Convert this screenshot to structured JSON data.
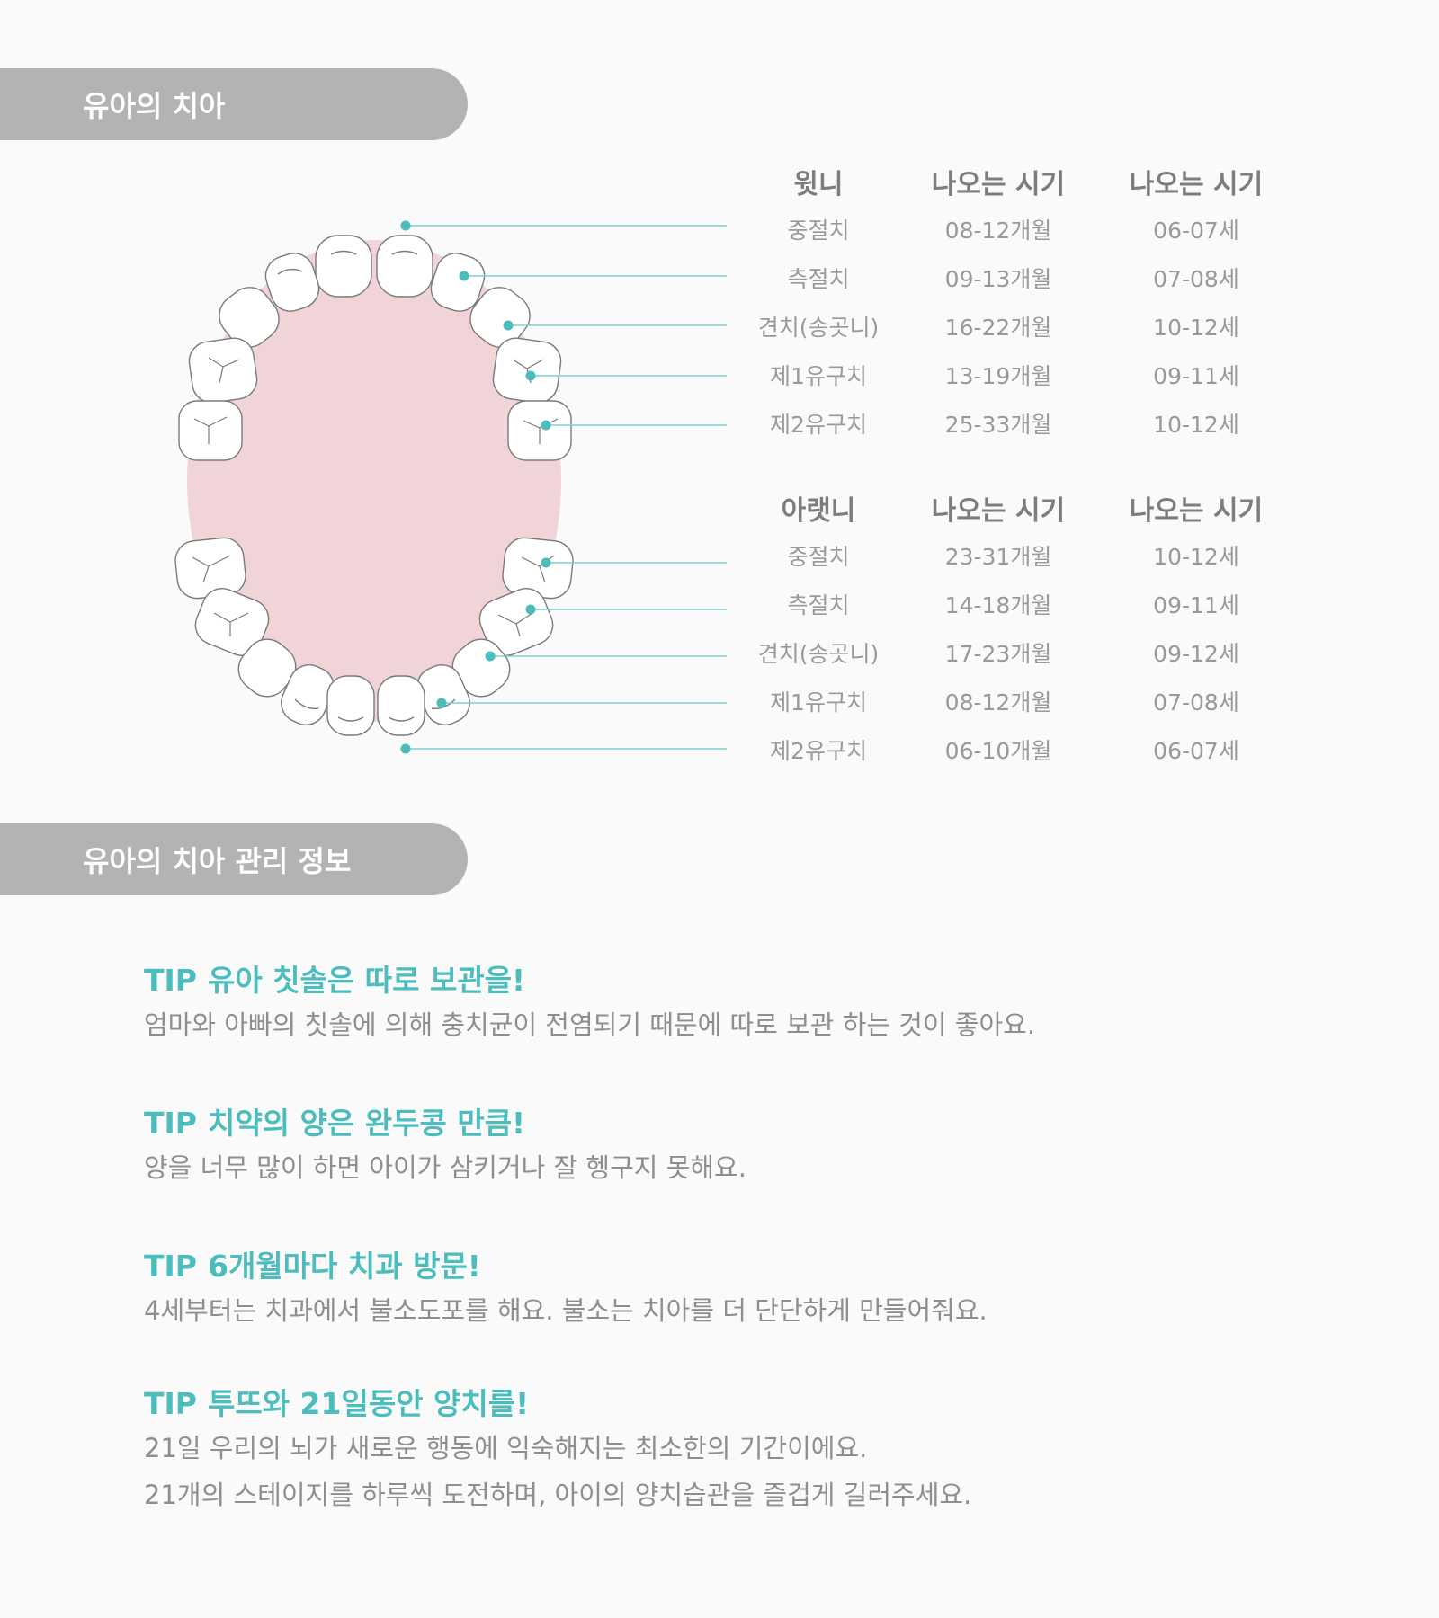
{
  "section1": {
    "title": "유아의 치아"
  },
  "section2": {
    "title": "유아의 치아 관리 정보"
  },
  "upper_table": {
    "headers": [
      "윗니",
      "나오는 시기",
      "나오는 시기"
    ],
    "rows": [
      [
        "중절치",
        "08-12개월",
        "06-07세"
      ],
      [
        "측절치",
        "09-13개월",
        "07-08세"
      ],
      [
        "견치(송곳니)",
        "16-22개월",
        "10-12세"
      ],
      [
        "제1유구치",
        "13-19개월",
        "09-11세"
      ],
      [
        "제2유구치",
        "25-33개월",
        "10-12세"
      ]
    ]
  },
  "lower_table": {
    "headers": [
      "아랫니",
      "나오는 시기",
      "나오는 시기"
    ],
    "rows": [
      [
        "중절치",
        "23-31개월",
        "10-12세"
      ],
      [
        "측절치",
        "14-18개월",
        "09-11세"
      ],
      [
        "견치(송곳니)",
        "17-23개월",
        "09-12세"
      ],
      [
        "제1유구치",
        "08-12개월",
        "07-08세"
      ],
      [
        "제2유구치",
        "06-10개월",
        "06-07세"
      ]
    ]
  },
  "tips": [
    {
      "label": "TIP",
      "title": "유아 칫솔은 따로 보관을!",
      "lines": [
        "엄마와 아빠의 칫솔에 의해 충치균이 전염되기 때문에 따로 보관 하는 것이 좋아요."
      ]
    },
    {
      "label": "TIP",
      "title": "치약의 양은 완두콩 만큼!",
      "lines": [
        "양을 너무 많이 하면 아이가 삼키거나 잘 헹구지 못해요."
      ]
    },
    {
      "label": "TIP",
      "title": "6개월마다 치과 방문!",
      "lines": [
        "4세부터는 치과에서 불소도포를 해요. 불소는 치아를 더 단단하게 만들어줘요."
      ]
    },
    {
      "label": "TIP",
      "title": "투뜨와 21일동안 양치를!",
      "lines": [
        "21일 우리의 뇌가 새로운 행동에 익숙해지는 최소한의 기간이에요.",
        "21개의 스테이지를 하루씩 도전하며, 아이의 양치습관을 즐겁게 길러주세요."
      ]
    }
  ],
  "colors": {
    "accent": "#4cbcbc",
    "gum": "#f0d4d7",
    "header_bg": "#b3b3b3",
    "pointer_line": "#7fcfcf"
  }
}
